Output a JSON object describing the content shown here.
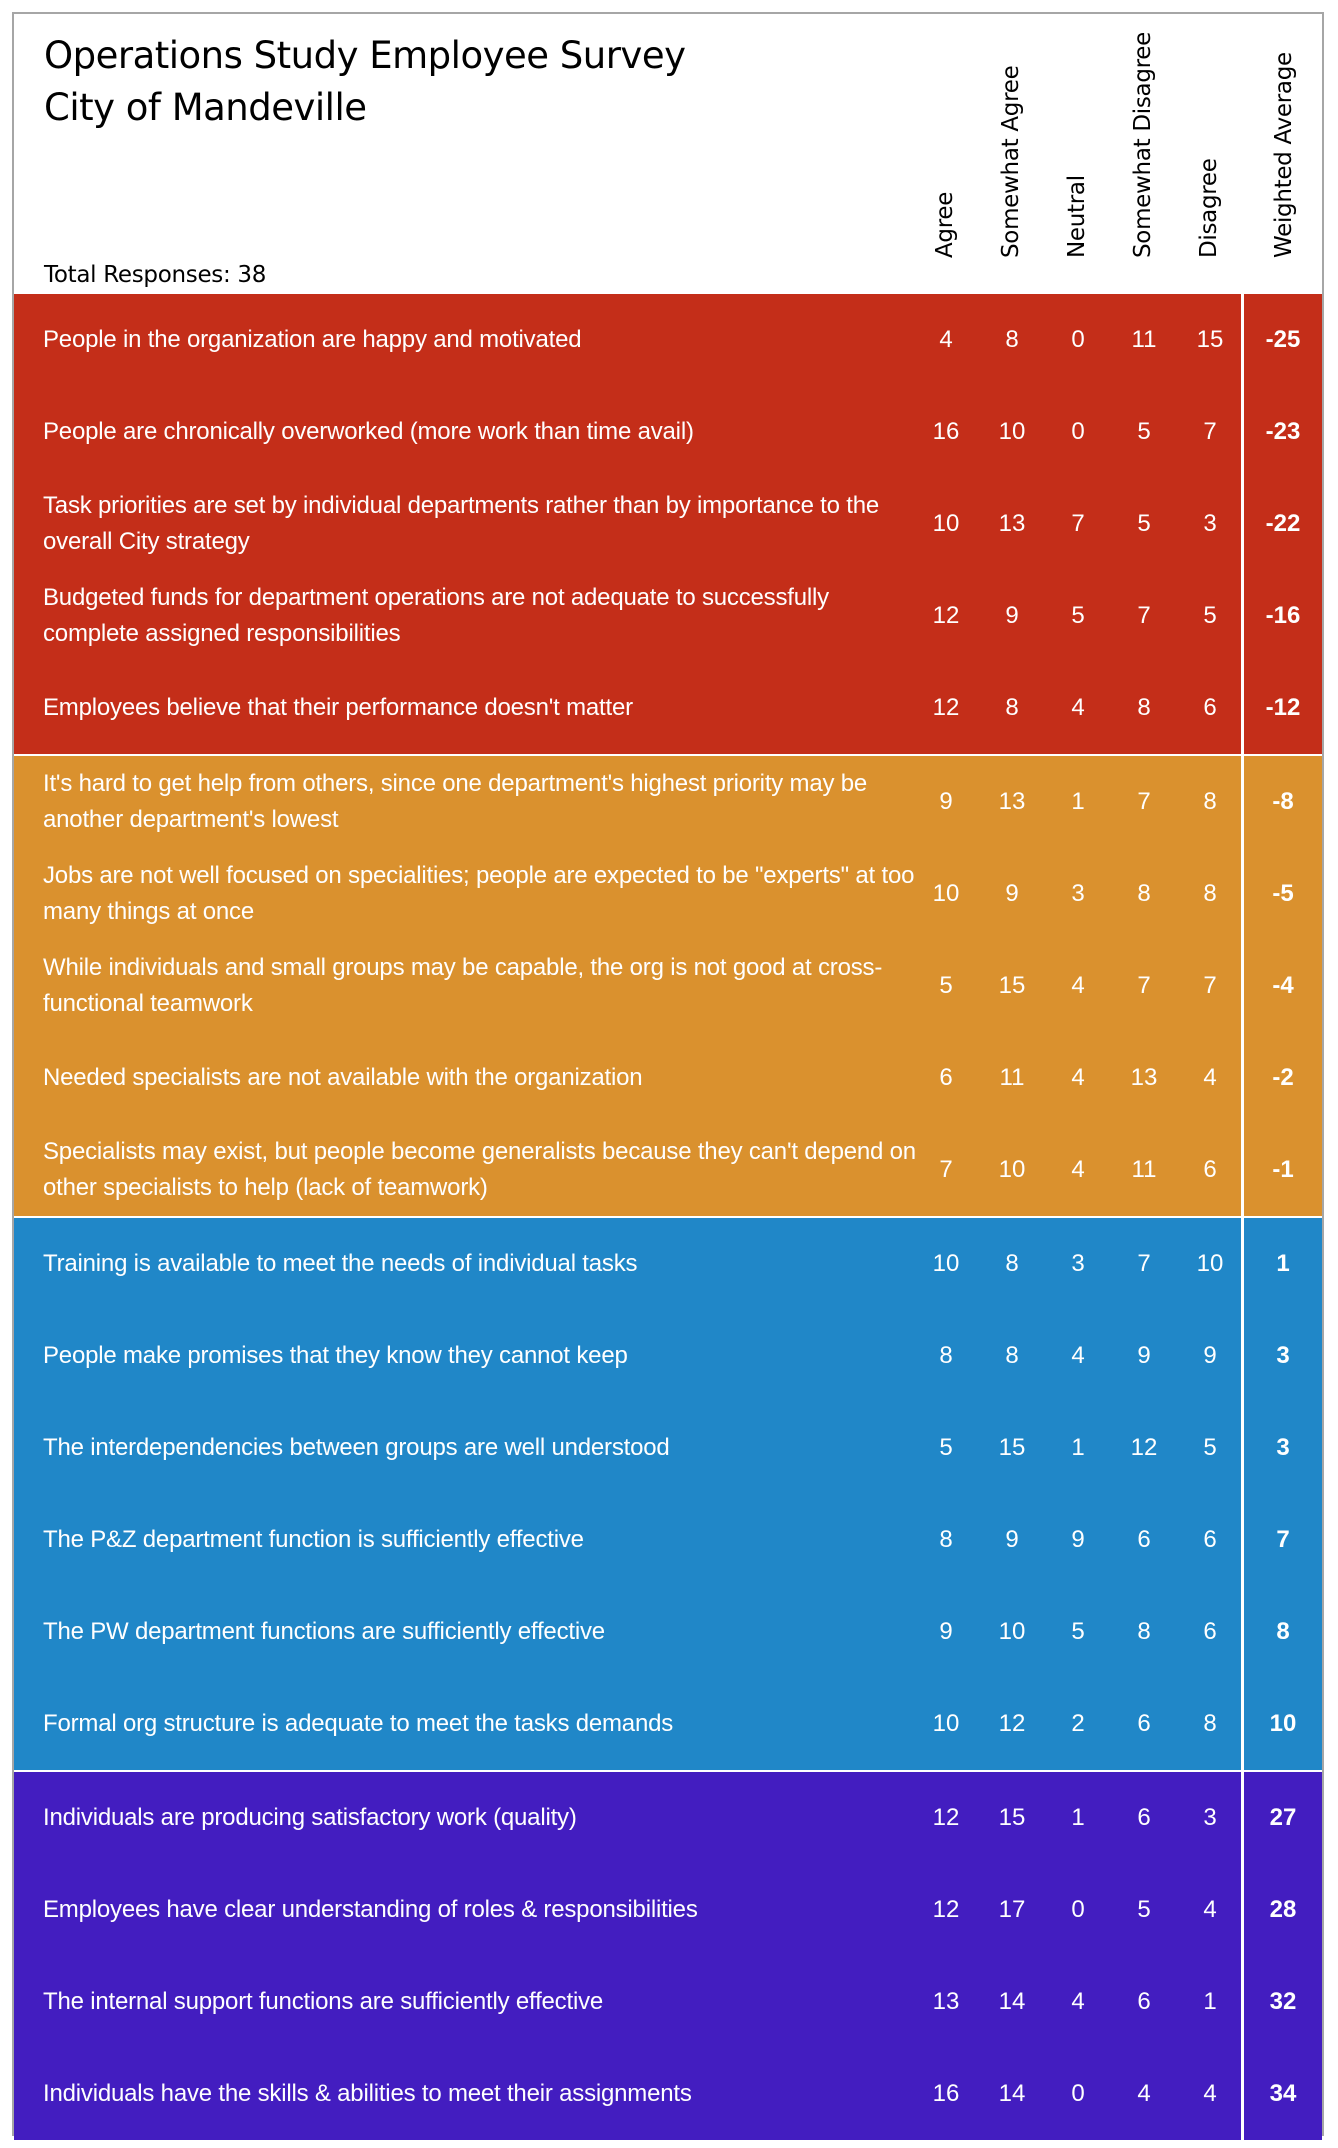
{
  "header": {
    "title_line1": "Operations Study Employee Survey",
    "title_line2": "City of Mandeville",
    "total_responses": "Total Responses: 38"
  },
  "columns": [
    "Agree",
    "Somewhat Agree",
    "Neutral",
    "Somewhat Disagree",
    "Disagree",
    "Weighted Average"
  ],
  "colors": {
    "red": "#C42E19",
    "orange": "#DA912E",
    "blue": "#2087C8",
    "purple": "#431DC0"
  },
  "sections": [
    {
      "color": "#C42E19",
      "rows": [
        {
          "question": "People in the organization are happy and motivated",
          "agree": "4",
          "somewhat_agree": "8",
          "neutral": "0",
          "somewhat_disagree": "11",
          "disagree": "15",
          "weighted": "-25"
        },
        {
          "question": "People are chronically overworked (more work than time avail)",
          "agree": "16",
          "somewhat_agree": "10",
          "neutral": "0",
          "somewhat_disagree": "5",
          "disagree": "7",
          "weighted": "-23"
        },
        {
          "question": "Task priorities are set by individual departments rather than by importance to the overall City strategy",
          "agree": "10",
          "somewhat_agree": "13",
          "neutral": "7",
          "somewhat_disagree": "5",
          "disagree": "3",
          "weighted": "-22"
        },
        {
          "question": "Budgeted funds for department operations are not adequate to successfully complete assigned responsibilities",
          "agree": "12",
          "somewhat_agree": "9",
          "neutral": "5",
          "somewhat_disagree": "7",
          "disagree": "5",
          "weighted": "-16"
        },
        {
          "question": "Employees believe that their performance doesn't matter",
          "agree": "12",
          "somewhat_agree": "8",
          "neutral": "4",
          "somewhat_disagree": "8",
          "disagree": "6",
          "weighted": "-12"
        }
      ]
    },
    {
      "color": "#DA912E",
      "rows": [
        {
          "question": "It's hard to get help from others, since one department's highest priority may be another department's lowest",
          "agree": "9",
          "somewhat_agree": "13",
          "neutral": "1",
          "somewhat_disagree": "7",
          "disagree": "8",
          "weighted": "-8"
        },
        {
          "question": "Jobs are not well focused on specialities; people are expected to be \"experts\" at too many things at once",
          "agree": "10",
          "somewhat_agree": "9",
          "neutral": "3",
          "somewhat_disagree": "8",
          "disagree": "8",
          "weighted": "-5"
        },
        {
          "question": "While individuals and small groups may be capable, the org is not good at cross-functional teamwork",
          "agree": "5",
          "somewhat_agree": "15",
          "neutral": "4",
          "somewhat_disagree": "7",
          "disagree": "7",
          "weighted": "-4"
        },
        {
          "question": "Needed specialists are not available with the organization",
          "agree": "6",
          "somewhat_agree": "11",
          "neutral": "4",
          "somewhat_disagree": "13",
          "disagree": "4",
          "weighted": "-2"
        },
        {
          "question": "Specialists may exist, but people become generalists because they can't depend on other specialists to help (lack of teamwork)",
          "agree": "7",
          "somewhat_agree": "10",
          "neutral": "4",
          "somewhat_disagree": "11",
          "disagree": "6",
          "weighted": "-1"
        }
      ]
    },
    {
      "color": "#2087C8",
      "rows": [
        {
          "question": "Training is available to meet the needs of individual tasks",
          "agree": "10",
          "somewhat_agree": "8",
          "neutral": "3",
          "somewhat_disagree": "7",
          "disagree": "10",
          "weighted": "1"
        },
        {
          "question": "People make promises that they know they cannot keep",
          "agree": "8",
          "somewhat_agree": "8",
          "neutral": "4",
          "somewhat_disagree": "9",
          "disagree": "9",
          "weighted": "3"
        },
        {
          "question": "The interdependencies between groups are well understood",
          "agree": "5",
          "somewhat_agree": "15",
          "neutral": "1",
          "somewhat_disagree": "12",
          "disagree": "5",
          "weighted": "3"
        },
        {
          "question": "The P&Z department function is sufficiently effective",
          "agree": "8",
          "somewhat_agree": "9",
          "neutral": "9",
          "somewhat_disagree": "6",
          "disagree": "6",
          "weighted": "7"
        },
        {
          "question": "The PW department functions are sufficiently effective",
          "agree": "9",
          "somewhat_agree": "10",
          "neutral": "5",
          "somewhat_disagree": "8",
          "disagree": "6",
          "weighted": "8"
        },
        {
          "question": "Formal org structure is adequate to meet the tasks demands",
          "agree": "10",
          "somewhat_agree": "12",
          "neutral": "2",
          "somewhat_disagree": "6",
          "disagree": "8",
          "weighted": "10"
        }
      ]
    },
    {
      "color": "#431DC0",
      "rows": [
        {
          "question": "Individuals are producing satisfactory work (quality)",
          "agree": "12",
          "somewhat_agree": "15",
          "neutral": "1",
          "somewhat_disagree": "6",
          "disagree": "3",
          "weighted": "27"
        },
        {
          "question": "Employees have clear understanding of roles & responsibilities",
          "agree": "12",
          "somewhat_agree": "17",
          "neutral": "0",
          "somewhat_disagree": "5",
          "disagree": "4",
          "weighted": "28"
        },
        {
          "question": "The internal support functions are sufficiently effective",
          "agree": "13",
          "somewhat_agree": "14",
          "neutral": "4",
          "somewhat_disagree": "6",
          "disagree": "1",
          "weighted": "32"
        },
        {
          "question": "Individuals have the skills & abilities to meet their assignments",
          "agree": "16",
          "somewhat_agree": "14",
          "neutral": "0",
          "somewhat_disagree": "4",
          "disagree": "4",
          "weighted": "34"
        }
      ]
    }
  ]
}
